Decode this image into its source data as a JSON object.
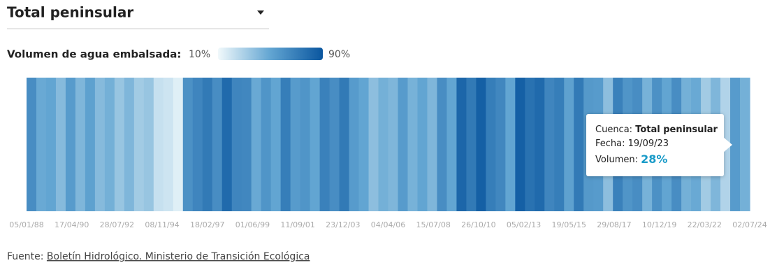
{
  "header": {
    "title": "Total peninsular"
  },
  "chart_data": {
    "type": "stripes",
    "legend_title": "Volumen de agua embalsada:",
    "scale": {
      "min": {
        "value": 10,
        "label": "10%"
      },
      "max": {
        "value": 90,
        "label": "90%"
      },
      "colors": [
        "#f1f9fb",
        "#62a5d2",
        "#0a569f"
      ]
    },
    "x_labels": [
      "05/01/88",
      "17/04/90",
      "28/07/92",
      "08/11/94",
      "18/02/97",
      "01/06/99",
      "11/09/01",
      "23/12/03",
      "04/04/06",
      "15/07/08",
      "26/10/10",
      "05/02/13",
      "19/05/15",
      "29/08/17",
      "10/12/19",
      "22/03/22",
      "02/07/24"
    ],
    "values": [
      62,
      48,
      50,
      40,
      55,
      42,
      52,
      40,
      45,
      35,
      42,
      32,
      35,
      22,
      20,
      15,
      60,
      66,
      72,
      62,
      80,
      66,
      65,
      48,
      58,
      50,
      70,
      55,
      58,
      50,
      68,
      62,
      72,
      55,
      50,
      38,
      45,
      42,
      55,
      44,
      50,
      42,
      62,
      50,
      82,
      72,
      85,
      70,
      65,
      50,
      85,
      76,
      80,
      66,
      70,
      52,
      72,
      56,
      55,
      38,
      68,
      58,
      62,
      44,
      60,
      50,
      62,
      45,
      48,
      32,
      42,
      28,
      55,
      45
    ],
    "tooltip": {
      "cuenca_label": "Cuenca:",
      "cuenca": "Total peninsular",
      "fecha_label": "Fecha:",
      "fecha": "19/09/23",
      "volumen_label": "Volumen:",
      "volumen": {
        "value": 28,
        "label": "28%"
      }
    }
  },
  "footer": {
    "label": "Fuente:",
    "link": "Boletín Hidrológico. Ministerio de Transición Ecológica"
  }
}
